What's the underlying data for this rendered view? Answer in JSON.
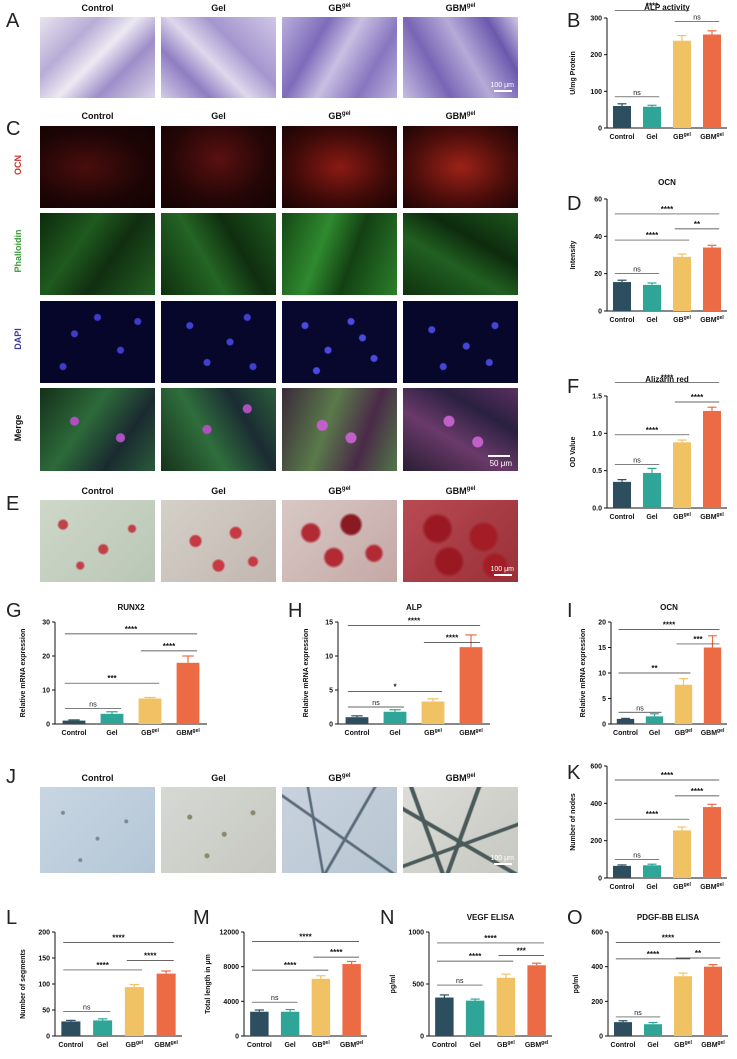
{
  "panels": {
    "a": "A",
    "b": "B",
    "c": "C",
    "d": "D",
    "e": "E",
    "f": "F",
    "g": "G",
    "h": "H",
    "i": "I",
    "j": "J",
    "k": "K",
    "l": "L",
    "m": "M",
    "n": "N",
    "o": "O"
  },
  "groups": {
    "control": "Control",
    "gel": "Gel",
    "gb": "GB",
    "gbm": "GBM",
    "sup": "gel"
  },
  "stain_labels": {
    "ocn": "OCN",
    "phalloidin": "Phalloidin",
    "dapi": "DAPI",
    "merge": "Merge"
  },
  "scale_bars": {
    "a": "100 μm",
    "c": "50 μm",
    "e": "100 μm",
    "j": "100 μm"
  },
  "colors": {
    "control": "#2c4e5e",
    "gel": "#2fa597",
    "gb": "#f1c264",
    "gbm": "#ec6b45"
  },
  "chart_data": [
    {
      "id": "B",
      "type": "bar",
      "title": "ALP activity",
      "ylabel": "U/mg Protein",
      "ylim": [
        0,
        300
      ],
      "yticks": [
        0,
        100,
        200,
        300
      ],
      "categories": [
        "Control",
        "Gel",
        "GB",
        "GBM"
      ],
      "values": [
        60,
        58,
        238,
        255
      ],
      "errors": [
        6,
        4,
        14,
        10
      ],
      "sig": [
        {
          "from": 0,
          "to": 1,
          "label": "ns",
          "y": 85
        },
        {
          "from": 2,
          "to": 3,
          "label": "ns",
          "y": 290
        },
        {
          "from": 0,
          "to": 2,
          "label": "****",
          "y": 320
        },
        {
          "from": 0,
          "to": 3,
          "label": "****",
          "y": 365
        }
      ]
    },
    {
      "id": "D",
      "type": "bar",
      "title": "OCN",
      "ylabel": "Intensity",
      "ylim": [
        0,
        60
      ],
      "yticks": [
        0,
        20,
        40,
        60
      ],
      "categories": [
        "Control",
        "Gel",
        "GB",
        "GBM"
      ],
      "values": [
        15.5,
        14,
        29,
        34
      ],
      "errors": [
        1,
        1,
        1.5,
        1.2
      ],
      "sig": [
        {
          "from": 0,
          "to": 1,
          "label": "ns",
          "y": 20
        },
        {
          "from": 0,
          "to": 2,
          "label": "****",
          "y": 38
        },
        {
          "from": 2,
          "to": 3,
          "label": "**",
          "y": 44
        },
        {
          "from": 0,
          "to": 3,
          "label": "****",
          "y": 52
        }
      ]
    },
    {
      "id": "F",
      "type": "bar",
      "title": "Alizarin red",
      "ylabel": "OD Value",
      "ylim": [
        0,
        1.5
      ],
      "yticks": [
        0.0,
        0.5,
        1.0,
        1.5
      ],
      "categories": [
        "Control",
        "Gel",
        "GB",
        "GBM"
      ],
      "values": [
        0.35,
        0.47,
        0.88,
        1.3
      ],
      "errors": [
        0.03,
        0.06,
        0.03,
        0.05
      ],
      "sig": [
        {
          "from": 0,
          "to": 1,
          "label": "ns",
          "y": 0.58
        },
        {
          "from": 0,
          "to": 2,
          "label": "****",
          "y": 0.98
        },
        {
          "from": 2,
          "to": 3,
          "label": "****",
          "y": 1.42
        },
        {
          "from": 0,
          "to": 3,
          "label": "****",
          "y": 1.68
        }
      ]
    },
    {
      "id": "G",
      "type": "bar",
      "title": "RUNX2",
      "ylabel": "Relative mRNA expression",
      "ylim": [
        0,
        30
      ],
      "yticks": [
        0,
        10,
        20,
        30
      ],
      "categories": [
        "Control",
        "Gel",
        "GB",
        "GBM"
      ],
      "values": [
        1,
        3,
        7.5,
        18
      ],
      "errors": [
        0.2,
        0.6,
        0.3,
        2
      ],
      "sig": [
        {
          "from": 0,
          "to": 1,
          "label": "ns",
          "y": 4.5
        },
        {
          "from": 0,
          "to": 2,
          "label": "***",
          "y": 12
        },
        {
          "from": 2,
          "to": 3,
          "label": "****",
          "y": 21.5
        },
        {
          "from": 0,
          "to": 3,
          "label": "****",
          "y": 26.5
        }
      ]
    },
    {
      "id": "H",
      "type": "bar",
      "title": "ALP",
      "ylabel": "Relative mRNA expression",
      "ylim": [
        0,
        15
      ],
      "yticks": [
        0,
        5,
        10,
        15
      ],
      "categories": [
        "Control",
        "Gel",
        "GB",
        "GBM"
      ],
      "values": [
        1,
        1.8,
        3.3,
        11.3
      ],
      "errors": [
        0.2,
        0.3,
        0.4,
        1.8
      ],
      "sig": [
        {
          "from": 0,
          "to": 1,
          "label": "ns",
          "y": 2.5
        },
        {
          "from": 0,
          "to": 2,
          "label": "*",
          "y": 4.8
        },
        {
          "from": 2,
          "to": 3,
          "label": "****",
          "y": 12
        },
        {
          "from": 0,
          "to": 3,
          "label": "****",
          "y": 14.5
        }
      ]
    },
    {
      "id": "I",
      "type": "bar",
      "title": "OCN",
      "ylabel": "Relative mRNA expression",
      "ylim": [
        0,
        20
      ],
      "yticks": [
        0,
        5,
        10,
        15,
        20
      ],
      "categories": [
        "Control",
        "Gel",
        "GB",
        "GBM"
      ],
      "values": [
        1,
        1.5,
        7.7,
        15
      ],
      "errors": [
        0.1,
        0.5,
        1.2,
        2.3
      ],
      "sig": [
        {
          "from": 0,
          "to": 1,
          "label": "ns",
          "y": 2.3
        },
        {
          "from": 0,
          "to": 2,
          "label": "**",
          "y": 10
        },
        {
          "from": 2,
          "to": 3,
          "label": "***",
          "y": 15.7
        },
        {
          "from": 0,
          "to": 3,
          "label": "****",
          "y": 18.5
        }
      ]
    },
    {
      "id": "K",
      "type": "bar",
      "title": "",
      "ylabel": "Number of nodes",
      "ylim": [
        0,
        600
      ],
      "yticks": [
        0,
        200,
        400,
        600
      ],
      "categories": [
        "Control",
        "Gel",
        "GB",
        "GBM"
      ],
      "values": [
        65,
        68,
        255,
        380
      ],
      "errors": [
        5,
        6,
        18,
        15
      ],
      "sig": [
        {
          "from": 0,
          "to": 1,
          "label": "ns",
          "y": 100
        },
        {
          "from": 0,
          "to": 2,
          "label": "****",
          "y": 315
        },
        {
          "from": 2,
          "to": 3,
          "label": "****",
          "y": 440
        },
        {
          "from": 0,
          "to": 3,
          "label": "****",
          "y": 525
        }
      ]
    },
    {
      "id": "L",
      "type": "bar",
      "title": "",
      "ylabel": "Number of segments",
      "ylim": [
        0,
        200
      ],
      "yticks": [
        0,
        50,
        100,
        150,
        200
      ],
      "categories": [
        "Control",
        "Gel",
        "GB",
        "GBM"
      ],
      "values": [
        28,
        30,
        94,
        120
      ],
      "errors": [
        2,
        3,
        5,
        5
      ],
      "sig": [
        {
          "from": 0,
          "to": 1,
          "label": "ns",
          "y": 47
        },
        {
          "from": 0,
          "to": 2,
          "label": "****",
          "y": 127
        },
        {
          "from": 2,
          "to": 3,
          "label": "****",
          "y": 145
        },
        {
          "from": 0,
          "to": 3,
          "label": "****",
          "y": 180
        }
      ]
    },
    {
      "id": "M",
      "type": "bar",
      "title": "",
      "ylabel": "Total length in μm",
      "ylim": [
        0,
        12000
      ],
      "yticks": [
        0,
        4000,
        8000,
        12000
      ],
      "categories": [
        "Control",
        "Gel",
        "GB",
        "GBM"
      ],
      "values": [
        2800,
        2800,
        6600,
        8300
      ],
      "errors": [
        200,
        250,
        350,
        300
      ],
      "sig": [
        {
          "from": 0,
          "to": 1,
          "label": "ns",
          "y": 3900
        },
        {
          "from": 0,
          "to": 2,
          "label": "****",
          "y": 7600
        },
        {
          "from": 2,
          "to": 3,
          "label": "****",
          "y": 9100
        },
        {
          "from": 0,
          "to": 3,
          "label": "****",
          "y": 10900
        }
      ]
    },
    {
      "id": "N",
      "type": "bar",
      "title": "VEGF ELISA",
      "ylabel": "pg/ml",
      "ylim": [
        0,
        1000
      ],
      "yticks": [
        0,
        500,
        1000
      ],
      "categories": [
        "Control",
        "Gel",
        "GB",
        "GBM"
      ],
      "values": [
        370,
        340,
        560,
        680
      ],
      "errors": [
        25,
        15,
        35,
        20
      ],
      "sig": [
        {
          "from": 0,
          "to": 1,
          "label": "ns",
          "y": 490
        },
        {
          "from": 0,
          "to": 2,
          "label": "****",
          "y": 720
        },
        {
          "from": 2,
          "to": 3,
          "label": "***",
          "y": 775
        },
        {
          "from": 0,
          "to": 3,
          "label": "****",
          "y": 895
        }
      ]
    },
    {
      "id": "O",
      "type": "bar",
      "title": "PDGF-BB ELISA",
      "ylabel": "pg/ml",
      "ylim": [
        0,
        600
      ],
      "yticks": [
        0,
        200,
        400,
        600
      ],
      "categories": [
        "Control",
        "Gel",
        "GB",
        "GBM"
      ],
      "values": [
        80,
        68,
        345,
        400
      ],
      "errors": [
        8,
        10,
        18,
        12
      ],
      "sig": [
        {
          "from": 0,
          "to": 1,
          "label": "ns",
          "y": 110
        },
        {
          "from": 0,
          "to": 2,
          "label": "****",
          "y": 445
        },
        {
          "from": 2,
          "to": 3,
          "label": "**",
          "y": 450
        },
        {
          "from": 0,
          "to": 3,
          "label": "****",
          "y": 540
        }
      ]
    }
  ]
}
